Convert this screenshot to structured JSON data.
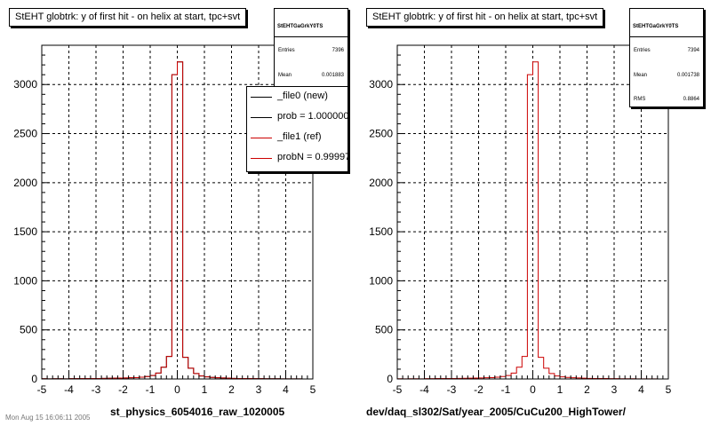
{
  "chart_data": [
    {
      "type": "bar",
      "title": "StEHT globtrk: y of first hit - on helix at start, tpc+svt",
      "xlabel": "st_physics_6054016_raw_1020005",
      "ylabel": "",
      "xlim": [
        -5,
        5
      ],
      "ylim": [
        0,
        3400
      ],
      "x_ticks": [
        "-5",
        "-4",
        "-3",
        "-2",
        "-1",
        "0",
        "1",
        "2",
        "3",
        "4",
        "5"
      ],
      "y_ticks": [
        "0",
        "500",
        "1000",
        "1500",
        "2000",
        "2500",
        "3000"
      ],
      "grid": true,
      "bin_width": 0.2,
      "bin_centers": [
        -4.9,
        -4.7,
        -4.5,
        -4.3,
        -4.1,
        -3.9,
        -3.7,
        -3.5,
        -3.3,
        -3.1,
        -2.9,
        -2.7,
        -2.5,
        -2.3,
        -2.1,
        -1.9,
        -1.7,
        -1.5,
        -1.3,
        -1.1,
        -0.9,
        -0.7,
        -0.5,
        -0.3,
        -0.1,
        0.1,
        0.3,
        0.5,
        0.7,
        0.9,
        1.1,
        1.3,
        1.5,
        1.7,
        1.9,
        2.1,
        2.3,
        2.5,
        2.7,
        2.9,
        3.1,
        3.3,
        3.5,
        3.7,
        3.9,
        4.1,
        4.3,
        4.5,
        4.7,
        4.9
      ],
      "series": [
        {
          "name": "_file0 (new)",
          "color": "#000000",
          "values": [
            2,
            1,
            2,
            2,
            1,
            3,
            3,
            4,
            4,
            5,
            5,
            6,
            7,
            8,
            9,
            10,
            12,
            14,
            18,
            25,
            35,
            60,
            120,
            230,
            3100,
            3230,
            220,
            110,
            55,
            30,
            22,
            16,
            12,
            10,
            8,
            6,
            5,
            4,
            4,
            3,
            3,
            2,
            2,
            2,
            1,
            1,
            1,
            1,
            0,
            0
          ]
        },
        {
          "name": "_file1 (ref)",
          "color": "#cc0000",
          "values": [
            2,
            1,
            2,
            2,
            1,
            3,
            3,
            4,
            4,
            5,
            5,
            6,
            7,
            8,
            9,
            10,
            12,
            14,
            18,
            25,
            35,
            60,
            120,
            230,
            3100,
            3230,
            220,
            110,
            55,
            30,
            22,
            16,
            12,
            10,
            8,
            6,
            5,
            4,
            4,
            3,
            3,
            2,
            2,
            2,
            1,
            1,
            1,
            1,
            0,
            0
          ]
        }
      ],
      "stats": {
        "name": "StEHTGaGrkY0TS",
        "rows": [
          {
            "label": "Entries",
            "value": "7396"
          },
          {
            "label": "Mean",
            "value": "0.001883"
          }
        ]
      },
      "legend": {
        "placement": "top-right",
        "entries": [
          {
            "text": "_file0 (new)",
            "color": "#000000"
          },
          {
            "text": "prob = 1.000000",
            "color": "#000000"
          },
          {
            "text": "_file1 (ref)",
            "color": "#cc0000"
          },
          {
            "text": "probN = 0.999970",
            "color": "#cc0000"
          }
        ]
      }
    },
    {
      "type": "bar",
      "title": "StEHT globtrk: y of first hit - on helix at start, tpc+svt",
      "xlabel": "dev/daq_sl302/Sat/year_2005/CuCu200_HighTower/",
      "ylabel": "",
      "xlim": [
        -5,
        5
      ],
      "ylim": [
        0,
        3400
      ],
      "x_ticks": [
        "-5",
        "-4",
        "-3",
        "-2",
        "-1",
        "0",
        "1",
        "2",
        "3",
        "4",
        "5"
      ],
      "y_ticks": [
        "0",
        "500",
        "1000",
        "1500",
        "2000",
        "2500",
        "3000"
      ],
      "grid": true,
      "bin_width": 0.2,
      "bin_centers": [
        -4.9,
        -4.7,
        -4.5,
        -4.3,
        -4.1,
        -3.9,
        -3.7,
        -3.5,
        -3.3,
        -3.1,
        -2.9,
        -2.7,
        -2.5,
        -2.3,
        -2.1,
        -1.9,
        -1.7,
        -1.5,
        -1.3,
        -1.1,
        -0.9,
        -0.7,
        -0.5,
        -0.3,
        -0.1,
        0.1,
        0.3,
        0.5,
        0.7,
        0.9,
        1.1,
        1.3,
        1.5,
        1.7,
        1.9,
        2.1,
        2.3,
        2.5,
        2.7,
        2.9,
        3.1,
        3.3,
        3.5,
        3.7,
        3.9,
        4.1,
        4.3,
        4.5,
        4.7,
        4.9
      ],
      "series": [
        {
          "color": "#cc0000",
          "values": [
            2,
            1,
            2,
            2,
            1,
            3,
            3,
            4,
            4,
            5,
            5,
            6,
            7,
            8,
            9,
            10,
            12,
            14,
            18,
            25,
            35,
            60,
            120,
            230,
            3100,
            3230,
            220,
            110,
            55,
            30,
            22,
            16,
            12,
            10,
            8,
            6,
            5,
            4,
            4,
            3,
            3,
            2,
            2,
            2,
            1,
            1,
            1,
            1,
            0,
            0
          ]
        }
      ],
      "stats": {
        "name": "StEHTGaGrkY0TS",
        "rows": [
          {
            "label": "Entries",
            "value": "7394"
          },
          {
            "label": "Mean",
            "value": "0.001738"
          },
          {
            "label": "RMS",
            "value": "0.8864"
          }
        ]
      }
    }
  ],
  "footer_date": "Mon Aug 15 16:06:11 2005"
}
